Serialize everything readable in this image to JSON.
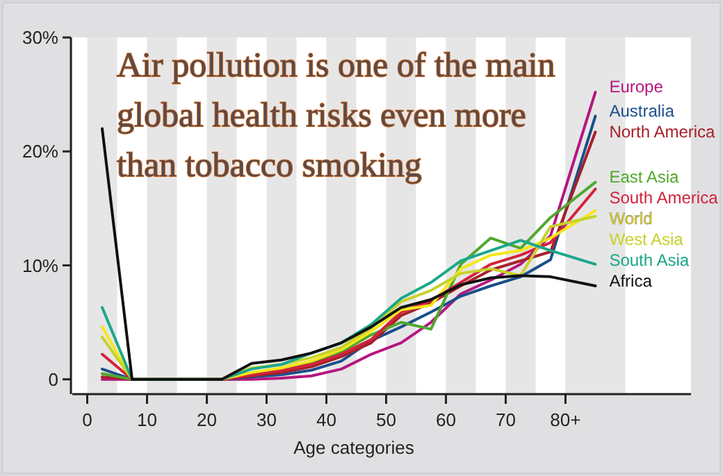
{
  "chart_data": {
    "type": "line",
    "title": "Air pollution is one of the main\nglobal health risks even more\nthan tobacco smoking",
    "xlabel": "Age categories",
    "x": [
      2.5,
      7.5,
      12.5,
      17.5,
      22.5,
      27.5,
      32.5,
      37.5,
      42.5,
      47.5,
      52.5,
      57.5,
      62.5,
      67.5,
      72.5,
      77.5,
      85
    ],
    "xlim": [
      -2.5,
      101
    ],
    "xticks": [
      0,
      10,
      20,
      30,
      40,
      50,
      60,
      70,
      {
        "value": 80,
        "label": "80+"
      }
    ],
    "ylim": [
      -1.3,
      30
    ],
    "yticks": [
      {
        "value": 0,
        "label": "0"
      },
      {
        "value": 10,
        "label": "10%"
      },
      {
        "value": 20,
        "label": "20%"
      },
      {
        "value": 30,
        "label": "30%"
      }
    ],
    "grid": false,
    "legend": "right",
    "marker": "none",
    "line_style": "solid",
    "bands": [
      {
        "axis": "x",
        "from": 0,
        "to": 5,
        "color": "#e6e6e6"
      },
      {
        "axis": "x",
        "from": 10,
        "to": 15,
        "color": "#e6e6e6"
      },
      {
        "axis": "x",
        "from": 20,
        "to": 25,
        "color": "#e6e6e6"
      },
      {
        "axis": "x",
        "from": 30,
        "to": 35,
        "color": "#e6e6e6"
      },
      {
        "axis": "x",
        "from": 40,
        "to": 45,
        "color": "#e6e6e6"
      },
      {
        "axis": "x",
        "from": 50,
        "to": 55,
        "color": "#e6e6e6"
      },
      {
        "axis": "x",
        "from": 60,
        "to": 65,
        "color": "#e6e6e6"
      },
      {
        "axis": "x",
        "from": 70,
        "to": 75,
        "color": "#e6e6e6"
      },
      {
        "axis": "x",
        "from": 80,
        "to": 90,
        "color": "#e6e6e6"
      }
    ],
    "series": [
      {
        "name": "Europe",
        "color": "#b5167f",
        "values": [
          0,
          0,
          0,
          0,
          0,
          0,
          0.1,
          0.3,
          0.9,
          2.2,
          3.2,
          5.0,
          7.5,
          8.7,
          10.1,
          12.6,
          25.2
        ]
      },
      {
        "name": "Australia",
        "color": "#1a4f8b",
        "values": [
          0.9,
          0,
          0,
          0,
          0,
          0.2,
          0.4,
          0.8,
          1.6,
          3.4,
          4.6,
          5.9,
          7.3,
          8.2,
          9.0,
          10.5,
          23.1
        ]
      },
      {
        "name": "North America",
        "color": "#a8202a",
        "values": [
          0.2,
          0,
          0,
          0,
          0,
          0.3,
          0.6,
          1.1,
          2.0,
          3.2,
          5.6,
          6.7,
          8.2,
          9.6,
          10.4,
          11.2,
          21.7
        ]
      },
      {
        "name": "East Asia",
        "color": "#4fa82e",
        "values": [
          0.5,
          0,
          0,
          0,
          0,
          0.5,
          0.9,
          1.5,
          2.4,
          3.9,
          5.0,
          4.4,
          10.1,
          12.4,
          11.5,
          14.2,
          17.3
        ]
      },
      {
        "name": "South America",
        "color": "#d2233c",
        "values": [
          2.2,
          0,
          0,
          0,
          0,
          0.4,
          0.8,
          1.3,
          2.2,
          3.5,
          5.9,
          6.9,
          8.5,
          10.1,
          10.9,
          12.0,
          16.7
        ]
      },
      {
        "name": "World",
        "color": "#f5e61b",
        "values": [
          4.6,
          0,
          0,
          0,
          0,
          0.6,
          1.0,
          1.6,
          2.6,
          4.2,
          6.1,
          6.5,
          9.7,
          10.9,
          11.3,
          12.4,
          14.8
        ]
      },
      {
        "name": "West Asia",
        "color": "#c6d22a",
        "values": [
          3.7,
          0,
          0,
          0,
          0,
          1.0,
          1.3,
          1.9,
          2.8,
          4.5,
          6.8,
          7.8,
          9.3,
          9.7,
          9.1,
          13.4,
          14.3
        ]
      },
      {
        "name": "South Asia",
        "color": "#1aa88a",
        "values": [
          6.3,
          0,
          0,
          0,
          0,
          0.9,
          1.3,
          2.3,
          3.2,
          4.8,
          7.1,
          8.5,
          10.4,
          11.3,
          12.2,
          11.3,
          10.1
        ]
      },
      {
        "name": "Africa",
        "color": "#111111",
        "values": [
          22,
          0,
          0,
          0,
          0,
          1.4,
          1.7,
          2.3,
          3.2,
          4.6,
          6.3,
          7.0,
          8.3,
          8.9,
          9.1,
          9.0,
          8.2
        ]
      }
    ]
  }
}
